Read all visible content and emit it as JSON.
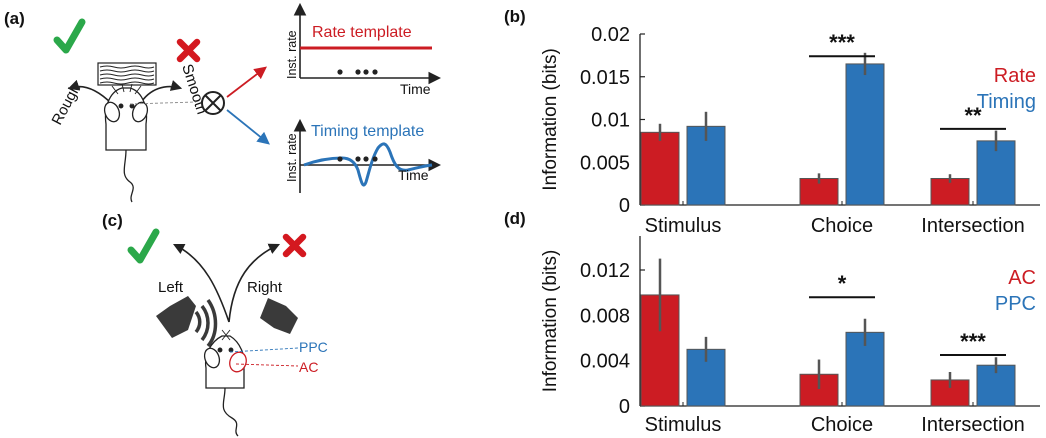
{
  "panels": {
    "a": {
      "label": "(a)",
      "texture_rough": "Rough",
      "texture_smooth": "Smooth",
      "rate_template_title": "Rate template",
      "timing_template_title": "Timing template",
      "template_ylabel": "Inst. rate",
      "template_xlabel": "Time"
    },
    "c": {
      "label": "(c)",
      "left_label": "Left",
      "right_label": "Right",
      "ppc_label": "PPC",
      "ac_label": "AC"
    },
    "b": {
      "label": "(b)"
    },
    "d": {
      "label": "(d)"
    }
  },
  "colors": {
    "red": "#cc1c23",
    "blue": "#2b74b8",
    "green": "#2ba84a",
    "cross": "#d4181f",
    "errorbar": "#555555",
    "dark": "#222222"
  },
  "chart_data": [
    {
      "type": "bar",
      "panel": "b",
      "ylabel": "Information (bits)",
      "ylim": [
        0,
        0.02
      ],
      "yticks": [
        0,
        0.005,
        0.01,
        0.015,
        0.02
      ],
      "ytick_labels": [
        "0",
        "0.005",
        "0.01",
        "0.015",
        "0.02"
      ],
      "categories": [
        "Stimulus",
        "Choice",
        "Intersection"
      ],
      "series": [
        {
          "name": "Rate",
          "color": "#cc1c23",
          "values": [
            0.0085,
            0.0031,
            0.0031
          ],
          "errors": [
            0.001,
            0.0006,
            0.0005
          ]
        },
        {
          "name": "Timing",
          "color": "#2b74b8",
          "values": [
            0.0092,
            0.0165,
            0.0075
          ],
          "errors": [
            0.0017,
            0.0013,
            0.0012
          ]
        }
      ],
      "significance": [
        {
          "category": "Choice",
          "label": "***",
          "y": 0.0174
        },
        {
          "category": "Intersection",
          "label": "**",
          "y": 0.0089
        }
      ],
      "legend": "top-right",
      "grid": false
    },
    {
      "type": "bar",
      "panel": "d",
      "ylabel": "Information (bits)",
      "ylim": [
        0,
        0.015
      ],
      "yticks": [
        0,
        0.004,
        0.008,
        0.012
      ],
      "ytick_labels": [
        "0",
        "0.004",
        "0.008",
        "0.012"
      ],
      "categories": [
        "Stimulus",
        "Choice",
        "Intersection"
      ],
      "series": [
        {
          "name": "AC",
          "color": "#cc1c23",
          "values": [
            0.0098,
            0.0028,
            0.0023
          ],
          "errors": [
            0.0032,
            0.0013,
            0.0007
          ]
        },
        {
          "name": "PPC",
          "color": "#2b74b8",
          "values": [
            0.005,
            0.0065,
            0.0036
          ],
          "errors": [
            0.0011,
            0.0012,
            0.0007
          ]
        }
      ],
      "significance": [
        {
          "category": "Choice",
          "label": "*",
          "y": 0.0096
        },
        {
          "category": "Intersection",
          "label": "***",
          "y": 0.0045
        }
      ],
      "legend": "top-right",
      "grid": false
    }
  ]
}
